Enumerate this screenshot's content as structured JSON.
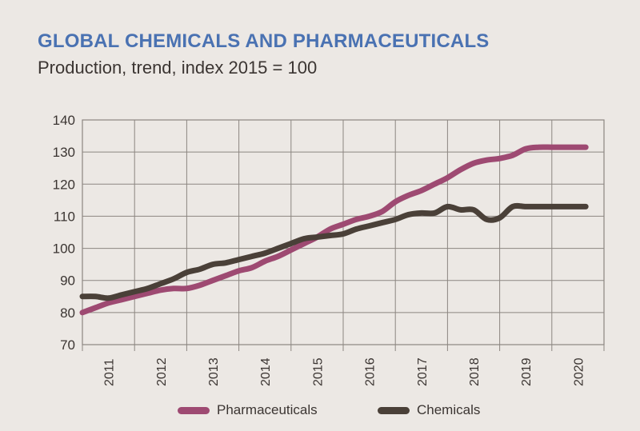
{
  "header": {
    "title": "GLOBAL CHEMICALS AND PHARMACEUTICALS",
    "subtitle": "Production, trend, index 2015 = 100"
  },
  "chart_data": {
    "type": "line",
    "title": "GLOBAL CHEMICALS AND PHARMACEUTICALS",
    "subtitle": "Production, trend, index 2015 = 100",
    "xlabel": "",
    "ylabel": "",
    "ylim": [
      70,
      140
    ],
    "yticks": [
      140,
      130,
      120,
      110,
      100,
      90,
      80,
      70
    ],
    "xlim": [
      2010.5,
      2020.5
    ],
    "categories": [
      "2011",
      "2012",
      "2013",
      "2014",
      "2015",
      "2016",
      "2017",
      "2018",
      "2019",
      "2020"
    ],
    "grid": true,
    "legend_position": "bottom",
    "series": [
      {
        "name": "Pharmaceuticals",
        "color": "#9e4a72",
        "x": [
          2010.5,
          2010.75,
          2011.0,
          2011.25,
          2011.5,
          2011.75,
          2012.0,
          2012.25,
          2012.5,
          2012.75,
          2013.0,
          2013.25,
          2013.5,
          2013.75,
          2014.0,
          2014.25,
          2014.5,
          2014.75,
          2015.0,
          2015.25,
          2015.5,
          2015.75,
          2016.0,
          2016.25,
          2016.5,
          2016.75,
          2017.0,
          2017.25,
          2017.5,
          2017.75,
          2018.0,
          2018.25,
          2018.5,
          2018.75,
          2019.0,
          2019.25,
          2019.5,
          2019.75,
          2020.0,
          2020.15
        ],
        "values": [
          80,
          81.5,
          83,
          84,
          85,
          86,
          87,
          87.5,
          87.5,
          88.5,
          90,
          91.5,
          93,
          94,
          96,
          97.5,
          99.5,
          101.5,
          103.5,
          106,
          107.5,
          109,
          110,
          111.5,
          114.5,
          116.5,
          118,
          120,
          122,
          124.5,
          126.5,
          127.5,
          128,
          129,
          131,
          131.5,
          131.5,
          131.5,
          131.5,
          131.5
        ]
      },
      {
        "name": "Chemicals",
        "color": "#4a4038",
        "x": [
          2010.5,
          2010.75,
          2011.0,
          2011.25,
          2011.5,
          2011.75,
          2012.0,
          2012.25,
          2012.5,
          2012.75,
          2013.0,
          2013.25,
          2013.5,
          2013.75,
          2014.0,
          2014.25,
          2014.5,
          2014.75,
          2015.0,
          2015.25,
          2015.5,
          2015.75,
          2016.0,
          2016.25,
          2016.5,
          2016.75,
          2017.0,
          2017.25,
          2017.5,
          2017.75,
          2018.0,
          2018.25,
          2018.5,
          2018.75,
          2019.0,
          2019.25,
          2019.5,
          2019.75,
          2020.0,
          2020.15
        ],
        "values": [
          85,
          85,
          84.5,
          85.5,
          86.5,
          87.5,
          89,
          90.5,
          92.5,
          93.5,
          95,
          95.5,
          96.5,
          97.5,
          98.5,
          100,
          101.5,
          103,
          103.5,
          104,
          104.5,
          106,
          107,
          108,
          109,
          110.5,
          111,
          111,
          113,
          112,
          112,
          109,
          109.5,
          113,
          113,
          113,
          113,
          113,
          113,
          113
        ]
      }
    ]
  }
}
